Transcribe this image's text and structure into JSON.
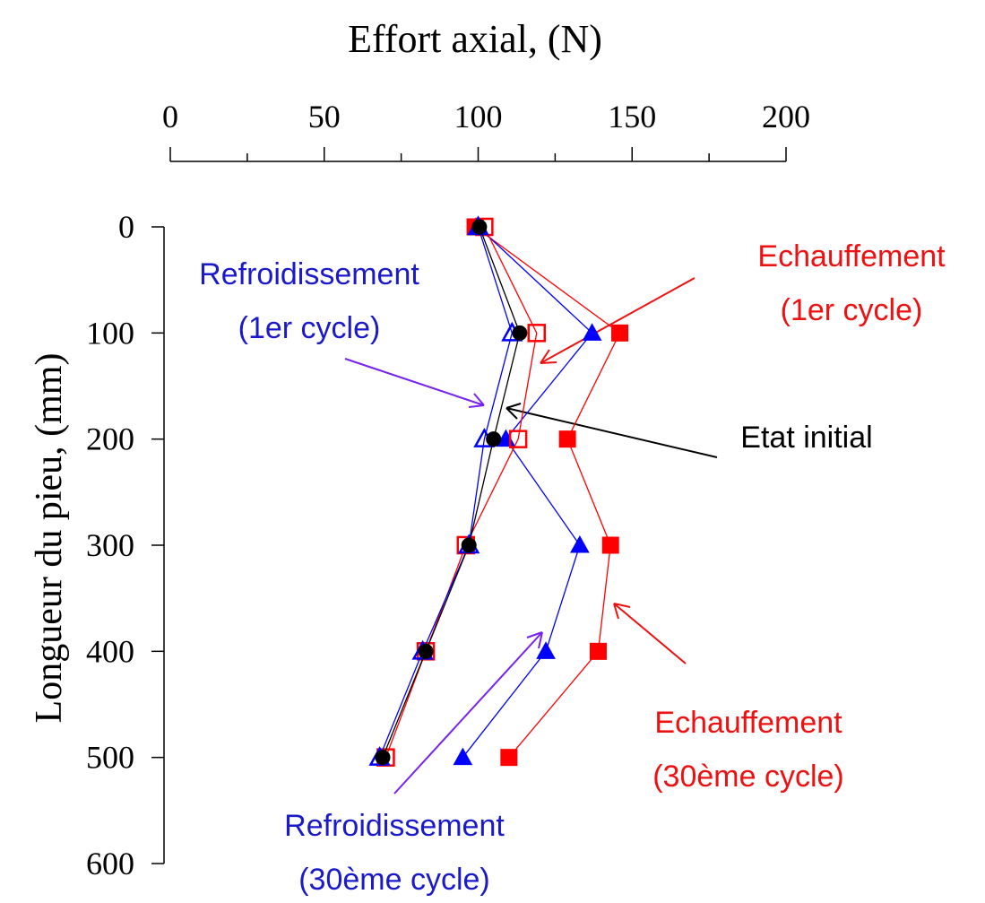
{
  "chart_data": {
    "type": "line",
    "title": "Effort axial, (N)",
    "y_label": "Longueur du pieu, (mm)",
    "y": [
      0,
      100,
      200,
      300,
      400,
      500
    ],
    "xlim": [
      0,
      200
    ],
    "xticks": [
      0,
      50,
      100,
      150,
      200
    ],
    "x_axis_position": "top",
    "ylim": [
      0,
      600
    ],
    "yticks": [
      0,
      100,
      200,
      300,
      400,
      500,
      600
    ],
    "y_inverted": true,
    "series": [
      {
        "color": "#ff0000",
        "marker": "square",
        "filled": true,
        "values": [
          99,
          146,
          129,
          143,
          139,
          110
        ]
      },
      {
        "color": "#0000ff",
        "marker": "triangle",
        "filled": true,
        "values": [
          100,
          137,
          109,
          133,
          122,
          95
        ]
      },
      {
        "color": "#ff0000",
        "marker": "square",
        "filled": false,
        "values": [
          102,
          119,
          113,
          96,
          83,
          70
        ]
      },
      {
        "color": "#0000ff",
        "marker": "triangle",
        "filled": false,
        "values": [
          100,
          111,
          102,
          97,
          82,
          68
        ]
      },
      {
        "color": "#000000",
        "marker": "circle",
        "filled": true,
        "values": [
          100.4,
          113.5,
          105,
          97,
          83,
          69
        ]
      }
    ],
    "annotations": [
      {
        "color": "#ee1111",
        "lines": [
          "Echauffement",
          "(1er cycle)"
        ]
      },
      {
        "color": "#1a1acc",
        "lines": [
          "Refroidissement",
          "(1er cycle)"
        ]
      },
      {
        "color": "#000000",
        "lines": [
          "Etat initial"
        ]
      },
      {
        "color": "#ee1111",
        "lines": [
          "Echauffement",
          "(30ème cycle)"
        ]
      },
      {
        "color": "#1a1acc",
        "lines": [
          "Refroidissement",
          "(30ème cycle)"
        ]
      }
    ]
  }
}
